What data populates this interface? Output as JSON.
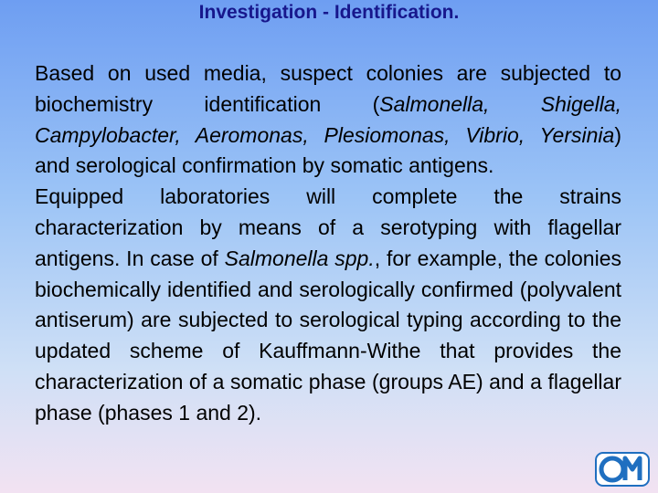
{
  "header": {
    "title": "Investigation - Identification."
  },
  "body": {
    "paragraphs": [
      {
        "runs": [
          {
            "text": "Based on used media, suspect colonies are subjected to biochemistry identification (",
            "italic": false
          },
          {
            "text": "Salmonella, Shigella, Campylobacter, Aeromonas, Plesiomonas, Vibrio, Yersinia",
            "italic": true
          },
          {
            "text": ") and serological confirmation by somatic antigens.",
            "italic": false
          }
        ]
      },
      {
        "runs": [
          {
            "text": "Equipped laboratories will complete the strains characterization by means of a serotyping with flagellar antigens. In case of ",
            "italic": false
          },
          {
            "text": "Salmonella spp.",
            "italic": true
          },
          {
            "text": ", for example, the colonies biochemically identified and serologically confirmed (polyvalent antiserum) are subjected to serological typing according to the updated scheme of Kauffmann-Withe that provides the characterization of a somatic phase (groups AE) and a flagellar phase (phases 1 and 2).",
            "italic": false
          }
        ]
      }
    ]
  }
}
